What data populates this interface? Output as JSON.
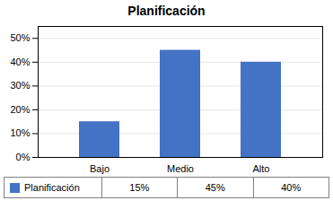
{
  "chart_data": {
    "type": "bar",
    "title": "Planificación",
    "categories": [
      "Bajo",
      "Medio",
      "Alto"
    ],
    "series": [
      {
        "name": "Planificación",
        "color": "#4472C4",
        "values": [
          0.15,
          0.45,
          0.4
        ],
        "value_labels": [
          "15%",
          "45%",
          "40%"
        ]
      }
    ],
    "ylim": [
      0,
      0.55
    ],
    "yticks": [
      {
        "value": 0.0,
        "label": "0%"
      },
      {
        "value": 0.1,
        "label": "10%"
      },
      {
        "value": 0.2,
        "label": "20%"
      },
      {
        "value": 0.3,
        "label": "30%"
      },
      {
        "value": 0.4,
        "label": "40%"
      },
      {
        "value": 0.5,
        "label": "50%"
      }
    ],
    "grid": true,
    "legend": "bottom"
  }
}
